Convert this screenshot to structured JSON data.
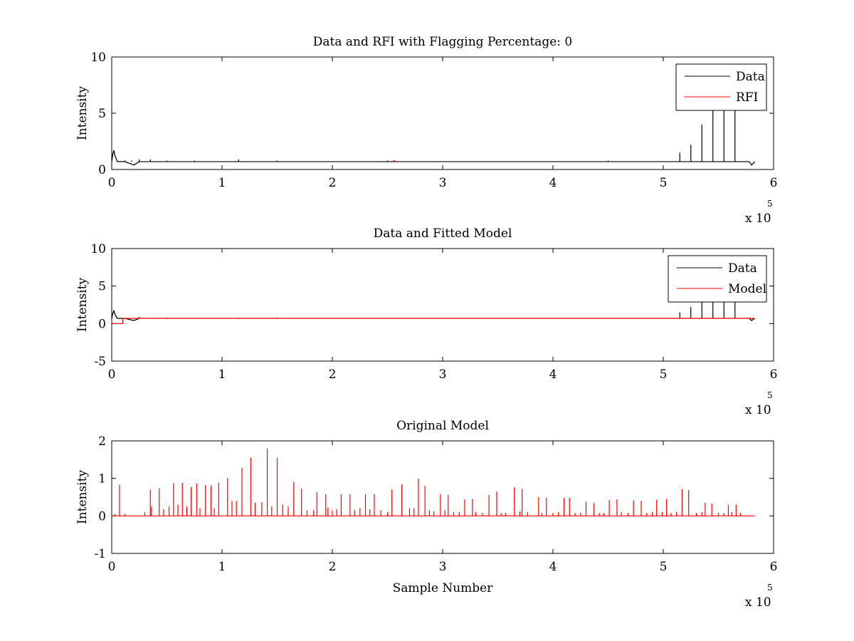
{
  "chart_data": [
    {
      "type": "line",
      "title": "Data and RFI with Flagging Percentage: 0",
      "xlabel": "",
      "ylabel": "Intensity",
      "xlim": [
        0,
        6
      ],
      "ylim": [
        0,
        10
      ],
      "xticks": [
        "0",
        "1",
        "2",
        "3",
        "4",
        "5",
        "6"
      ],
      "yticks": [
        "0",
        "5",
        "10"
      ],
      "x_multiplier": "x 10",
      "x_multiplier_exp": "5",
      "legend_position": "top-right",
      "series": [
        {
          "name": "Data",
          "color": "#000000",
          "baseline": 0.7,
          "startup_bump": [
            [
              0.0,
              0.7
            ],
            [
              0.01,
              1.4
            ],
            [
              0.02,
              1.7
            ],
            [
              0.03,
              1.2
            ],
            [
              0.05,
              0.7
            ],
            [
              0.08,
              0.7
            ],
            [
              0.12,
              0.7
            ],
            [
              0.2,
              0.4
            ],
            [
              0.25,
              0.7
            ]
          ],
          "spikes": [
            [
              0.12,
              0.8
            ],
            [
              0.18,
              0.8
            ],
            [
              0.25,
              0.9
            ],
            [
              0.35,
              0.9
            ],
            [
              0.5,
              0.8
            ],
            [
              0.75,
              0.8
            ],
            [
              1.15,
              0.9
            ],
            [
              1.5,
              0.8
            ],
            [
              2.5,
              0.8
            ],
            [
              4.5,
              0.8
            ],
            [
              5.15,
              1.5
            ],
            [
              5.25,
              2.2
            ],
            [
              5.35,
              4.0
            ],
            [
              5.45,
              5.5
            ],
            [
              5.55,
              5.5
            ],
            [
              5.65,
              5.5
            ]
          ],
          "end_dip": [
            [
              5.78,
              0.7
            ],
            [
              5.8,
              0.4
            ],
            [
              5.83,
              0.7
            ]
          ],
          "x_end": 5.83
        },
        {
          "name": "RFI",
          "color": "#ff0000",
          "points": [
            [
              2.55,
              0.7
            ],
            [
              2.56,
              0.8
            ],
            [
              2.57,
              0.7
            ]
          ]
        }
      ]
    },
    {
      "type": "line",
      "title": "Data and Fitted Model",
      "xlabel": "",
      "ylabel": "Intensity",
      "xlim": [
        0,
        6
      ],
      "ylim": [
        -5,
        10
      ],
      "xticks": [
        "0",
        "1",
        "2",
        "3",
        "4",
        "5",
        "6"
      ],
      "yticks": [
        "-5",
        "0",
        "5",
        "10"
      ],
      "x_multiplier": "x 10",
      "x_multiplier_exp": "5",
      "legend_position": "top-right",
      "series": [
        {
          "name": "Data",
          "color": "#000000",
          "baseline": 0.7,
          "startup_bump": [
            [
              0.0,
              0.7
            ],
            [
              0.01,
              1.4
            ],
            [
              0.02,
              1.7
            ],
            [
              0.03,
              1.2
            ],
            [
              0.05,
              0.7
            ],
            [
              0.08,
              0.7
            ],
            [
              0.12,
              0.7
            ],
            [
              0.2,
              0.4
            ],
            [
              0.25,
              0.7
            ]
          ],
          "spikes": [
            [
              0.25,
              0.9
            ],
            [
              0.5,
              0.8
            ],
            [
              1.15,
              0.8
            ],
            [
              1.5,
              0.8
            ],
            [
              5.15,
              1.5
            ],
            [
              5.25,
              2.2
            ],
            [
              5.35,
              4.0
            ],
            [
              5.45,
              5.5
            ],
            [
              5.55,
              5.5
            ],
            [
              5.65,
              5.5
            ]
          ],
          "end_dip": [
            [
              5.78,
              0.7
            ],
            [
              5.8,
              0.4
            ],
            [
              5.83,
              0.7
            ]
          ],
          "x_end": 5.83
        },
        {
          "name": "Model",
          "color": "#ff0000",
          "points": [
            [
              0.0,
              0.0
            ],
            [
              0.1,
              0.0
            ],
            [
              0.1,
              0.7
            ],
            [
              5.83,
              0.7
            ]
          ]
        }
      ]
    },
    {
      "type": "line",
      "title": "Original Model",
      "xlabel": "Sample Number",
      "ylabel": "Intensity",
      "xlim": [
        0,
        6
      ],
      "ylim": [
        -1,
        2
      ],
      "xticks": [
        "0",
        "1",
        "2",
        "3",
        "4",
        "5",
        "6"
      ],
      "yticks": [
        "-1",
        "0",
        "1",
        "2"
      ],
      "x_multiplier": "x 10",
      "x_multiplier_exp": "5",
      "legend_position": "none",
      "series": [
        {
          "color": "#ff0000",
          "baseline": 0.0,
          "x_end": 5.83,
          "spikes": [
            [
              0.07,
              0.83
            ],
            [
              0.35,
              0.7
            ],
            [
              0.43,
              0.74
            ],
            [
              0.56,
              0.87
            ],
            [
              0.64,
              0.88
            ],
            [
              0.72,
              0.77
            ],
            [
              0.77,
              0.86
            ],
            [
              0.85,
              0.82
            ],
            [
              0.9,
              0.8
            ],
            [
              0.97,
              0.88
            ],
            [
              1.05,
              1.01
            ],
            [
              1.18,
              1.28
            ],
            [
              1.26,
              1.55
            ],
            [
              1.41,
              1.8
            ],
            [
              1.5,
              1.55
            ],
            [
              1.65,
              0.9
            ],
            [
              1.72,
              0.73
            ],
            [
              1.86,
              0.63
            ],
            [
              1.94,
              0.58
            ],
            [
              2.08,
              0.58
            ],
            [
              2.16,
              0.58
            ],
            [
              2.3,
              0.58
            ],
            [
              2.38,
              0.58
            ],
            [
              2.54,
              0.7
            ],
            [
              2.63,
              0.84
            ],
            [
              2.78,
              0.99
            ],
            [
              2.84,
              0.8
            ],
            [
              2.98,
              0.58
            ],
            [
              3.05,
              0.56
            ],
            [
              3.2,
              0.44
            ],
            [
              3.27,
              0.45
            ],
            [
              3.42,
              0.56
            ],
            [
              3.49,
              0.65
            ],
            [
              3.65,
              0.76
            ],
            [
              3.72,
              0.72
            ],
            [
              3.87,
              0.5
            ],
            [
              3.94,
              0.48
            ],
            [
              4.1,
              0.48
            ],
            [
              4.15,
              0.48
            ],
            [
              4.3,
              0.38
            ],
            [
              4.37,
              0.34
            ],
            [
              4.51,
              0.42
            ],
            [
              4.58,
              0.44
            ],
            [
              4.73,
              0.41
            ],
            [
              4.8,
              0.4
            ],
            [
              4.94,
              0.43
            ],
            [
              5.03,
              0.45
            ],
            [
              5.17,
              0.71
            ],
            [
              5.23,
              0.69
            ],
            [
              5.38,
              0.35
            ],
            [
              5.44,
              0.33
            ],
            [
              5.59,
              0.29
            ],
            [
              5.66,
              0.3
            ]
          ],
          "minor_spikes": [
            [
              0.03,
              0.05
            ],
            [
              0.12,
              0.06
            ],
            [
              0.3,
              0.1
            ],
            [
              0.36,
              0.25
            ],
            [
              0.47,
              0.18
            ],
            [
              0.52,
              0.25
            ],
            [
              0.6,
              0.3
            ],
            [
              0.68,
              0.25
            ],
            [
              0.8,
              0.2
            ],
            [
              0.93,
              0.2
            ],
            [
              1.09,
              0.4
            ],
            [
              1.13,
              0.4
            ],
            [
              1.3,
              0.35
            ],
            [
              1.36,
              0.37
            ],
            [
              1.45,
              0.25
            ],
            [
              1.55,
              0.3
            ],
            [
              1.6,
              0.25
            ],
            [
              1.77,
              0.15
            ],
            [
              1.83,
              0.15
            ],
            [
              1.96,
              0.22
            ],
            [
              2.0,
              0.15
            ],
            [
              2.04,
              0.18
            ],
            [
              2.2,
              0.15
            ],
            [
              2.25,
              0.2
            ],
            [
              2.34,
              0.18
            ],
            [
              2.44,
              0.15
            ],
            [
              2.5,
              0.1
            ],
            [
              2.7,
              0.2
            ],
            [
              2.74,
              0.2
            ],
            [
              2.88,
              0.15
            ],
            [
              2.92,
              0.12
            ],
            [
              3.02,
              0.15
            ],
            [
              3.1,
              0.1
            ],
            [
              3.15,
              0.1
            ],
            [
              3.3,
              0.1
            ],
            [
              3.36,
              0.08
            ],
            [
              3.53,
              0.08
            ],
            [
              3.57,
              0.08
            ],
            [
              3.7,
              0.12
            ],
            [
              3.77,
              0.1
            ],
            [
              3.9,
              0.08
            ],
            [
              4.0,
              0.08
            ],
            [
              4.05,
              0.1
            ],
            [
              4.2,
              0.08
            ],
            [
              4.25,
              0.08
            ],
            [
              4.42,
              0.08
            ],
            [
              4.46,
              0.08
            ],
            [
              4.62,
              0.1
            ],
            [
              4.68,
              0.08
            ],
            [
              4.85,
              0.08
            ],
            [
              4.9,
              0.1
            ],
            [
              4.99,
              0.1
            ],
            [
              5.07,
              0.08
            ],
            [
              5.12,
              0.1
            ],
            [
              5.3,
              0.08
            ],
            [
              5.35,
              0.1
            ],
            [
              5.5,
              0.08
            ],
            [
              5.55,
              0.08
            ],
            [
              5.62,
              0.1
            ],
            [
              5.7,
              0.08
            ]
          ]
        }
      ]
    }
  ]
}
